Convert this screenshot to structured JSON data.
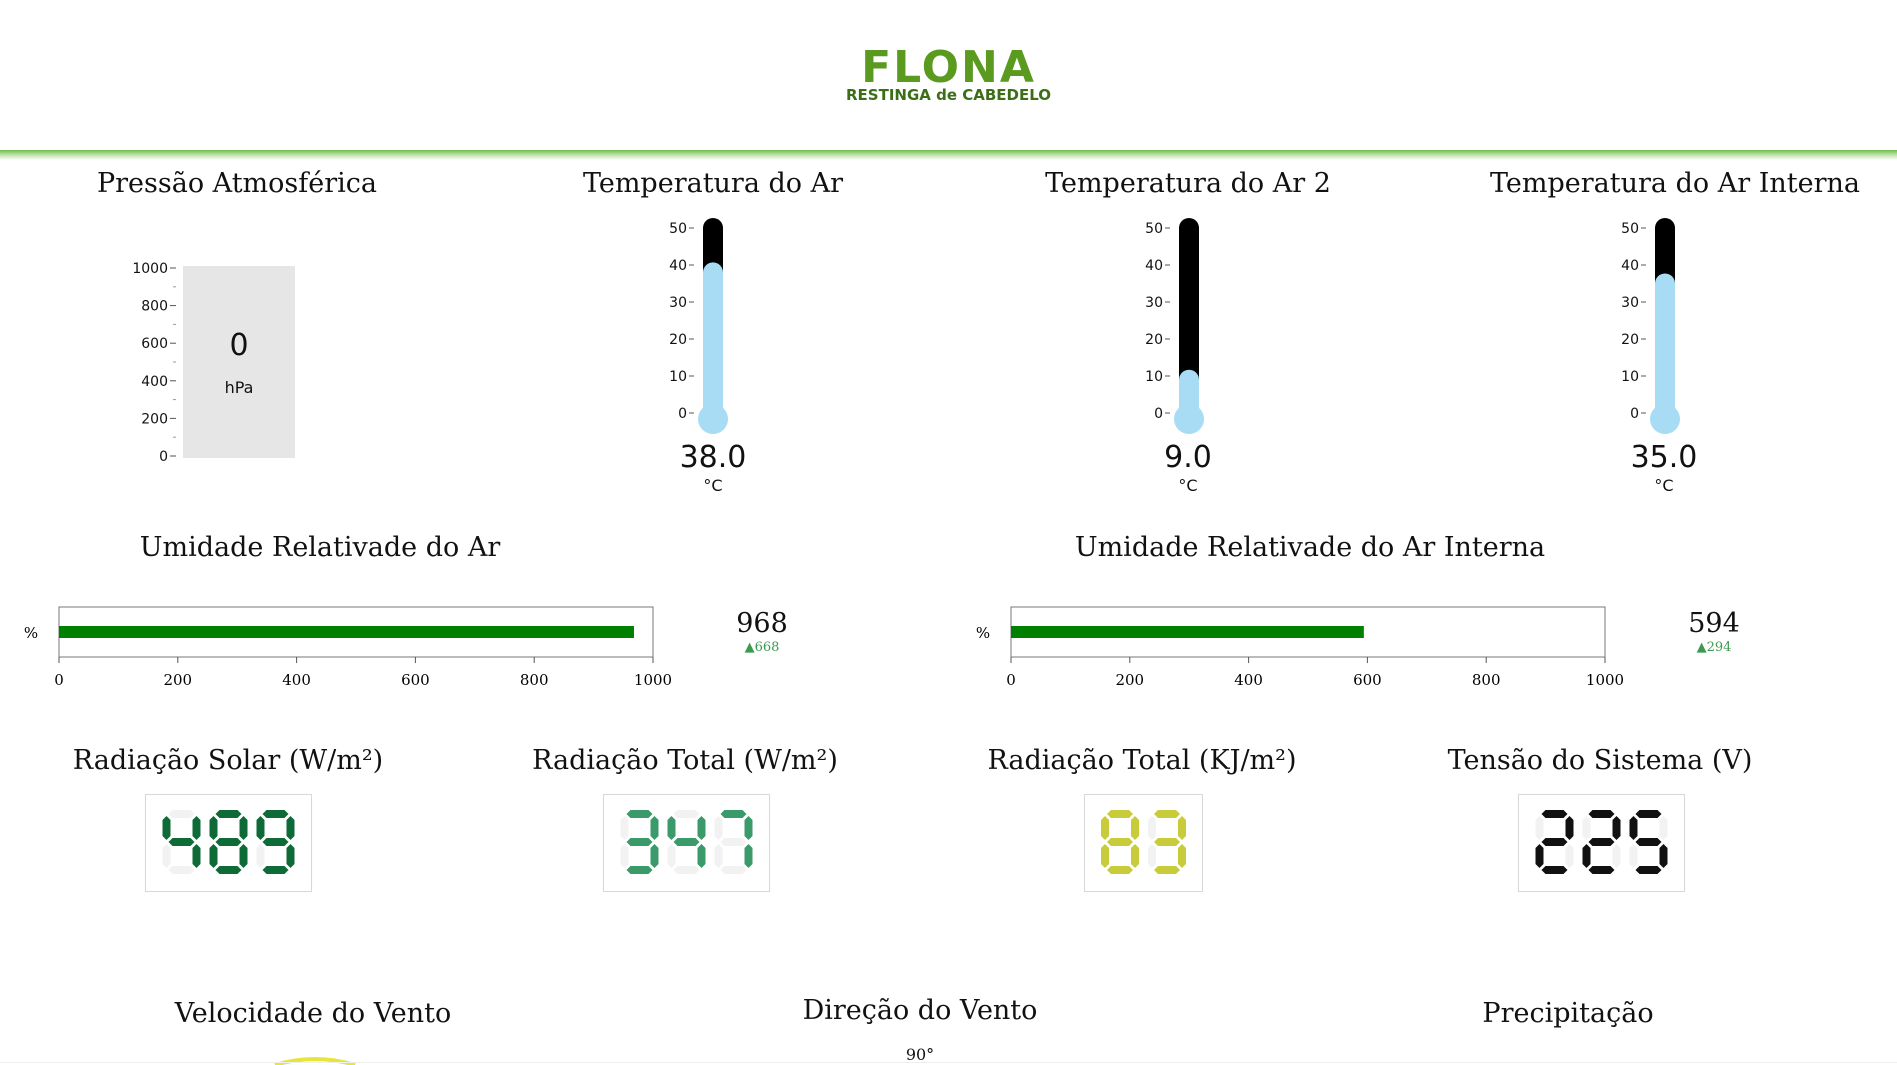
{
  "header": {
    "logo_main": "FLONA",
    "logo_sub": "RESTINGA de CABEDELO"
  },
  "pressure": {
    "title": "Pressão Atmosférica",
    "value": "0",
    "unit": "hPa",
    "scale": {
      "min": 0,
      "max": 1000,
      "ticks": [
        0,
        200,
        400,
        600,
        800,
        1000
      ]
    },
    "tick_labels": [
      "0",
      "200",
      "400",
      "600",
      "800",
      "1000"
    ]
  },
  "thermometers": [
    {
      "title": "Temperatura do Ar",
      "value": 38.0,
      "value_label": "38.0",
      "unit": "°C",
      "min": 0,
      "max": 50,
      "tick_labels": [
        "0",
        "10",
        "20",
        "30",
        "40",
        "50"
      ]
    },
    {
      "title": "Temperatura do Ar 2",
      "value": 9.0,
      "value_label": "9.0",
      "unit": "°C",
      "min": 0,
      "max": 50,
      "tick_labels": [
        "0",
        "10",
        "20",
        "30",
        "40",
        "50"
      ]
    },
    {
      "title": "Temperatura do Ar Interna",
      "value": 35.0,
      "value_label": "35.0",
      "unit": "°C",
      "min": 0,
      "max": 50,
      "tick_labels": [
        "0",
        "10",
        "20",
        "30",
        "40",
        "50"
      ]
    }
  ],
  "humidity": [
    {
      "title": "Umidade Relativade do Ar",
      "axis_unit": "%",
      "value": 968,
      "value_label": "968",
      "delta_label": "▲668",
      "max": 1000,
      "tick_labels": [
        "0",
        "200",
        "400",
        "600",
        "800",
        "1000"
      ],
      "bar_color": "#008000"
    },
    {
      "title": "Umidade Relativade do Ar Interna",
      "axis_unit": "%",
      "value": 594,
      "value_label": "594",
      "delta_label": "▲294",
      "max": 1000,
      "tick_labels": [
        "0",
        "200",
        "400",
        "600",
        "800",
        "1000"
      ],
      "bar_color": "#008000"
    }
  ],
  "displays": [
    {
      "title": "Radiação Solar (W/m²)",
      "value": "489",
      "digits": 3,
      "color": "#0e6b38"
    },
    {
      "title": "Radiação Total (W/m²)",
      "value": "347",
      "digits": 3,
      "color": "#3a9a6a"
    },
    {
      "title": "Radiação Total (KJ/m²)",
      "value": "83",
      "digits": 2,
      "color": "#c8cc3a"
    },
    {
      "title": "Tensão do Sistema (V)",
      "value": "225",
      "digits": 3,
      "color": "#111111"
    }
  ],
  "bottom": {
    "wind_speed_title": "Velocidade do Vento",
    "wind_direction_title": "Direção do Vento",
    "wind_direction_label": "90°",
    "precipitation_title": "Precipitação"
  }
}
